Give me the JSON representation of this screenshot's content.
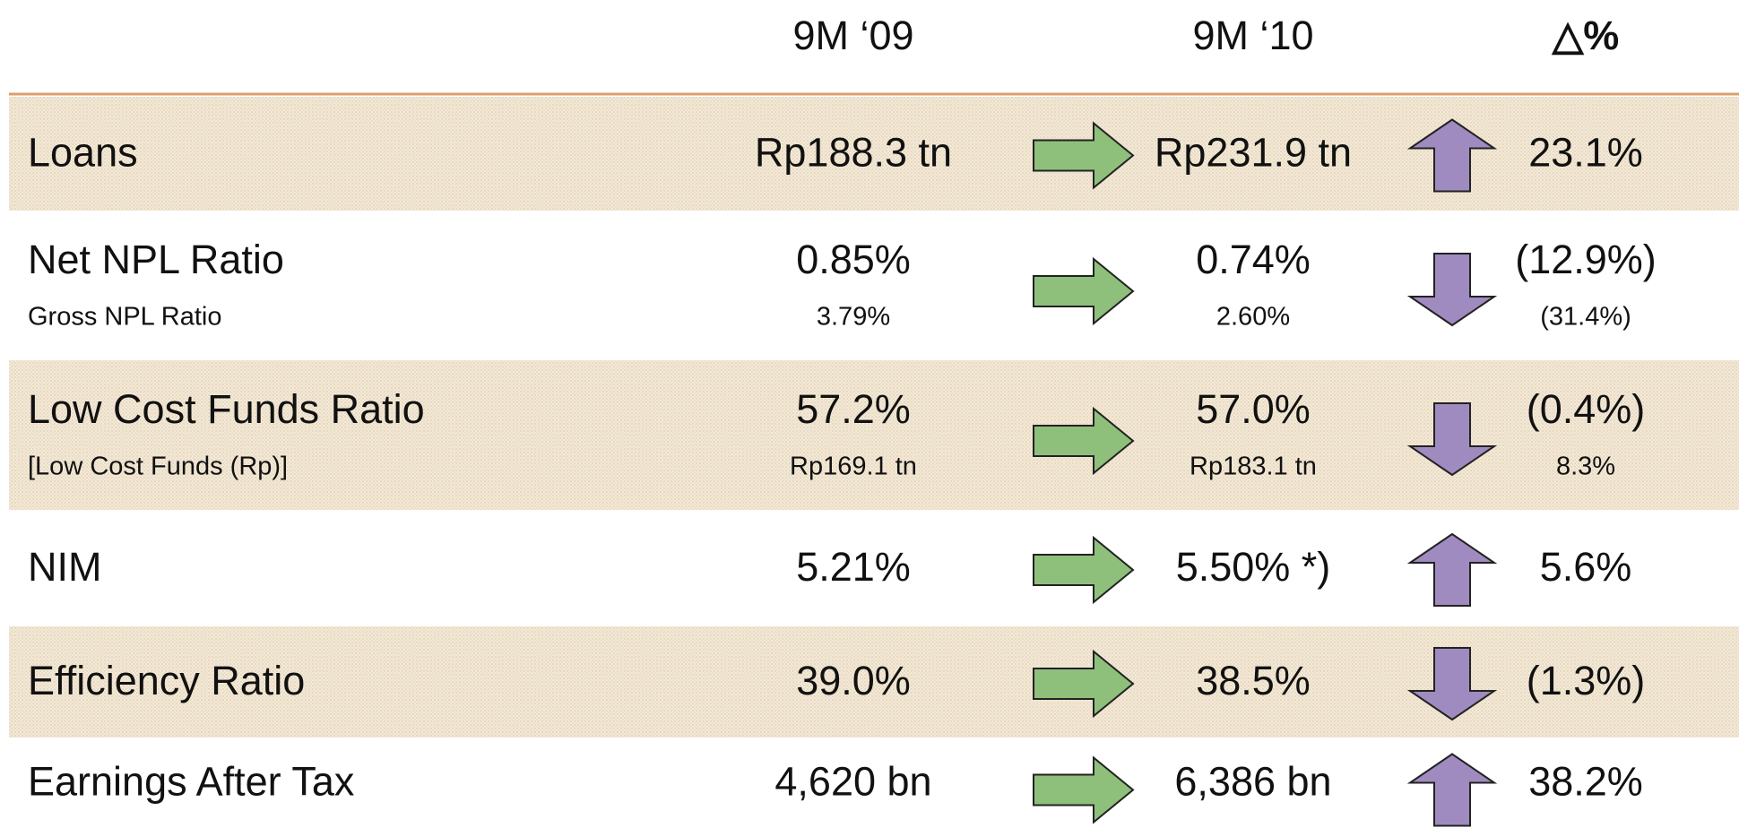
{
  "header": {
    "col1": "9M ‘09",
    "col2": "9M ‘10",
    "col3": "△%"
  },
  "rows": [
    {
      "label": "Loans",
      "v09": "Rp188.3 tn",
      "v10": "Rp231.9 tn",
      "delta": "23.1%"
    },
    {
      "label": "Net NPL Ratio",
      "sublabel": "Gross NPL Ratio",
      "v09": "0.85%",
      "sub09": "3.79%",
      "v10": "0.74%",
      "sub10": "2.60%",
      "delta": "(12.9%)",
      "subdelta": "(31.4%)"
    },
    {
      "label": "Low Cost Funds Ratio",
      "sublabel": "[Low Cost Funds (Rp)]",
      "v09": "57.2%",
      "sub09": "Rp169.1 tn",
      "v10": "57.0%",
      "sub10": "Rp183.1 tn",
      "delta": "(0.4%)",
      "subdelta": "8.3%"
    },
    {
      "label": "NIM",
      "v09": "5.21%",
      "v10": "5.50% *)",
      "delta": "5.6%"
    },
    {
      "label": "Efficiency Ratio",
      "v09": "39.0%",
      "v10": "38.5%",
      "delta": "(1.3%)"
    },
    {
      "label": "Earnings After Tax",
      "v09": "4,620 bn",
      "v10": "6,386 bn",
      "delta": "38.2%"
    }
  ]
}
